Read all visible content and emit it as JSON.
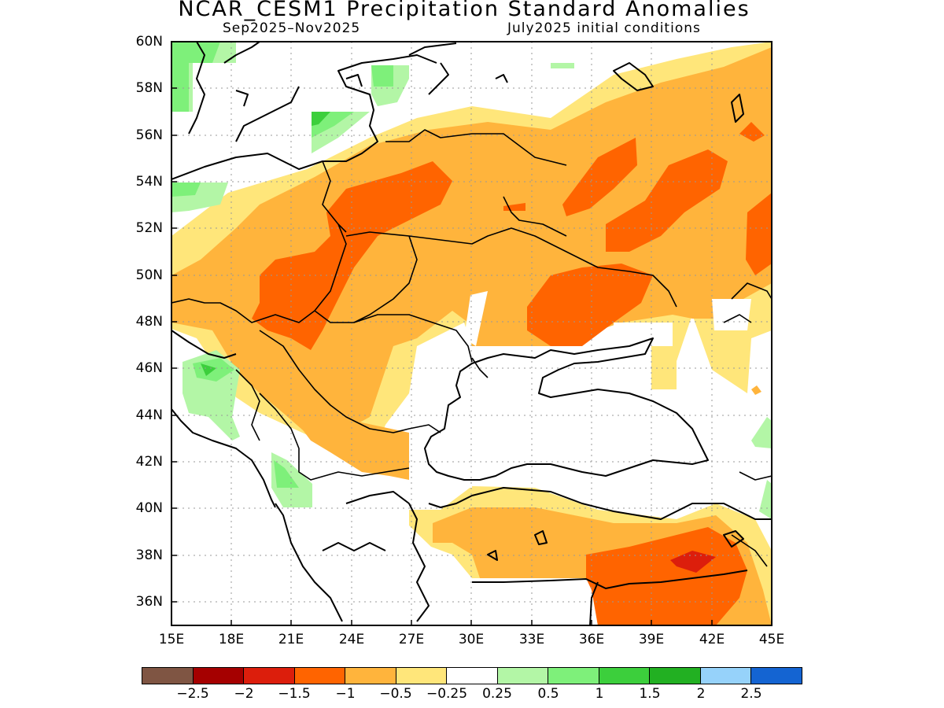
{
  "title": "NCAR_CESM1 Precipitation Standard Anomalies",
  "subtitle_left": "Sep2025–Nov2025",
  "subtitle_right": "July2025 initial conditions",
  "map": {
    "lon_range": [
      15,
      45
    ],
    "lat_range": [
      35,
      60
    ],
    "lat_labels": [
      "60N",
      "58N",
      "56N",
      "54N",
      "52N",
      "50N",
      "48N",
      "46N",
      "44N",
      "42N",
      "40N",
      "38N",
      "36N"
    ],
    "lon_labels": [
      "15E",
      "18E",
      "21E",
      "24E",
      "27E",
      "30E",
      "33E",
      "36E",
      "39E",
      "42E",
      "45E"
    ],
    "grid": "dotted"
  },
  "legend": {
    "colors": [
      "#7f5543",
      "#a50000",
      "#dc1e0c",
      "#ff6400",
      "#ffb43c",
      "#ffe67a",
      "#ffffff",
      "#b3f6a6",
      "#7ef07a",
      "#3ccf3c",
      "#22b022",
      "#96d2fa",
      "#1464d2"
    ],
    "tick_labels": [
      "−2.5",
      "−2",
      "−1.5",
      "−1",
      "−0.5",
      "−0.25",
      "0.25",
      "0.5",
      "1",
      "1.5",
      "2",
      "2.5"
    ]
  }
}
